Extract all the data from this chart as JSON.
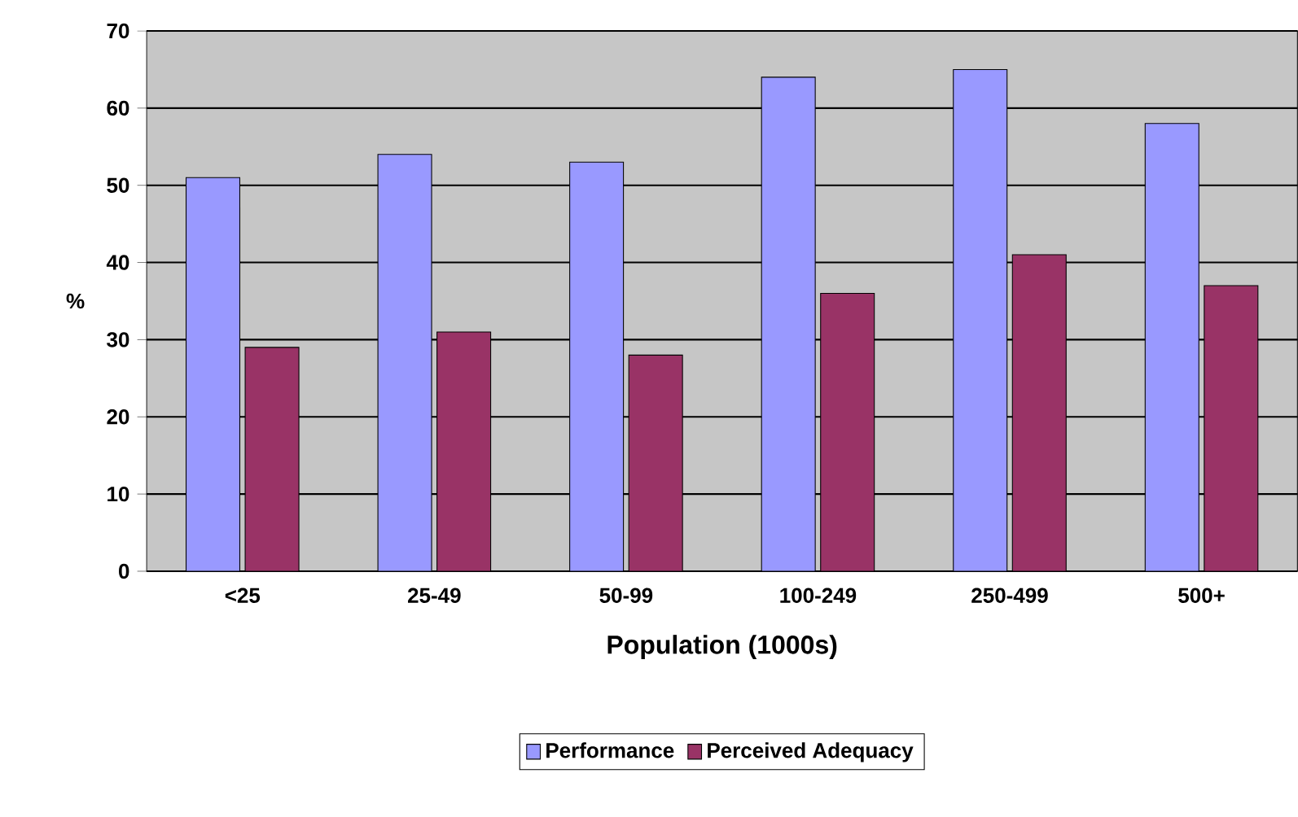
{
  "chart_data": {
    "type": "bar",
    "xlabel": "Population (1000s)",
    "ylabel": "%",
    "categories": [
      "<25",
      "25-49",
      "50-99",
      "100-249",
      "250-499",
      "500+"
    ],
    "series": [
      {
        "name": "Performance",
        "color": "#9999ff",
        "values": [
          51,
          54,
          53,
          64,
          65,
          58
        ]
      },
      {
        "name": "Perceived Adequacy",
        "color": "#993366",
        "values": [
          29,
          31,
          28,
          36,
          41,
          37
        ]
      }
    ],
    "ylim": [
      0,
      70
    ],
    "yticks": [
      0,
      10,
      20,
      30,
      40,
      50,
      60,
      70
    ],
    "grid": "y",
    "legend": "bottom"
  }
}
